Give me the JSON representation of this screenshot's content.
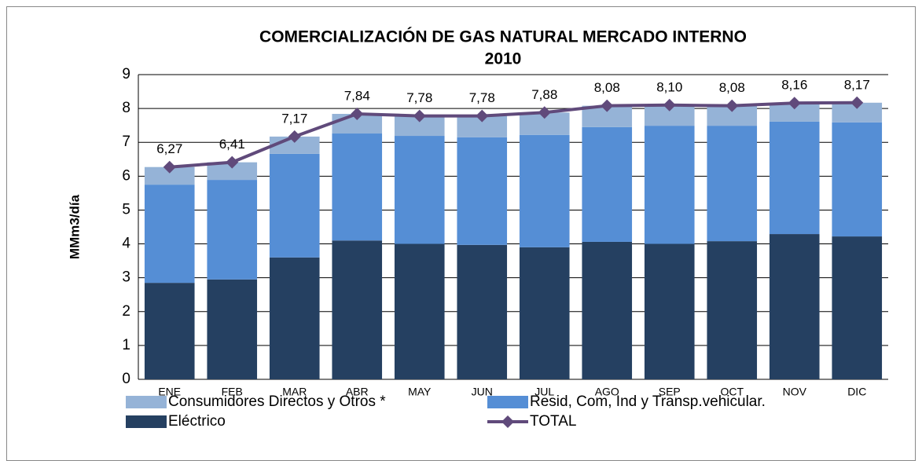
{
  "chart_data": {
    "type": "bar",
    "title": [
      "COMERCIALIZACIÓN DE GAS NATURAL MERCADO INTERNO",
      "2010"
    ],
    "y_label": "MMm3/día",
    "categories": [
      "ENE",
      "FEB",
      "MAR",
      "ABR",
      "MAY",
      "JUN",
      "JUL",
      "AGO",
      "SEP",
      "OCT",
      "NOV",
      "DIC"
    ],
    "series": [
      {
        "name": "Consumidores Directos y Otros *",
        "type": "bar",
        "color": "#95b3d7",
        "values": [
          0.52,
          0.52,
          0.51,
          0.58,
          0.59,
          0.63,
          0.66,
          0.63,
          0.61,
          0.59,
          0.55,
          0.58
        ]
      },
      {
        "name": "Resid, Com, Ind y Transp.vehicular.",
        "type": "bar",
        "color": "#558ed5",
        "values": [
          2.9,
          2.94,
          3.06,
          3.16,
          3.19,
          3.18,
          3.32,
          3.39,
          3.49,
          3.41,
          3.32,
          3.37
        ]
      },
      {
        "name": "Eléctrico",
        "type": "bar",
        "color": "#254061",
        "values": [
          2.85,
          2.95,
          3.6,
          4.1,
          4.0,
          3.97,
          3.9,
          4.06,
          4.0,
          4.08,
          4.29,
          4.22
        ]
      },
      {
        "name": "TOTAL",
        "type": "line",
        "color": "#604a7b",
        "values": [
          6.27,
          6.41,
          7.17,
          7.84,
          7.78,
          7.78,
          7.88,
          8.08,
          8.1,
          8.08,
          8.16,
          8.17
        ],
        "value_labels": [
          "6,27",
          "6,41",
          "7,17",
          "7,84",
          "7,78",
          "7,78",
          "7,88",
          "8,08",
          "8,10",
          "8,08",
          "8,16",
          "8,17"
        ]
      }
    ],
    "ylim": [
      0,
      9
    ],
    "yticks": [
      0,
      1,
      2,
      3,
      4,
      5,
      6,
      7,
      8,
      9
    ],
    "grid": true
  }
}
